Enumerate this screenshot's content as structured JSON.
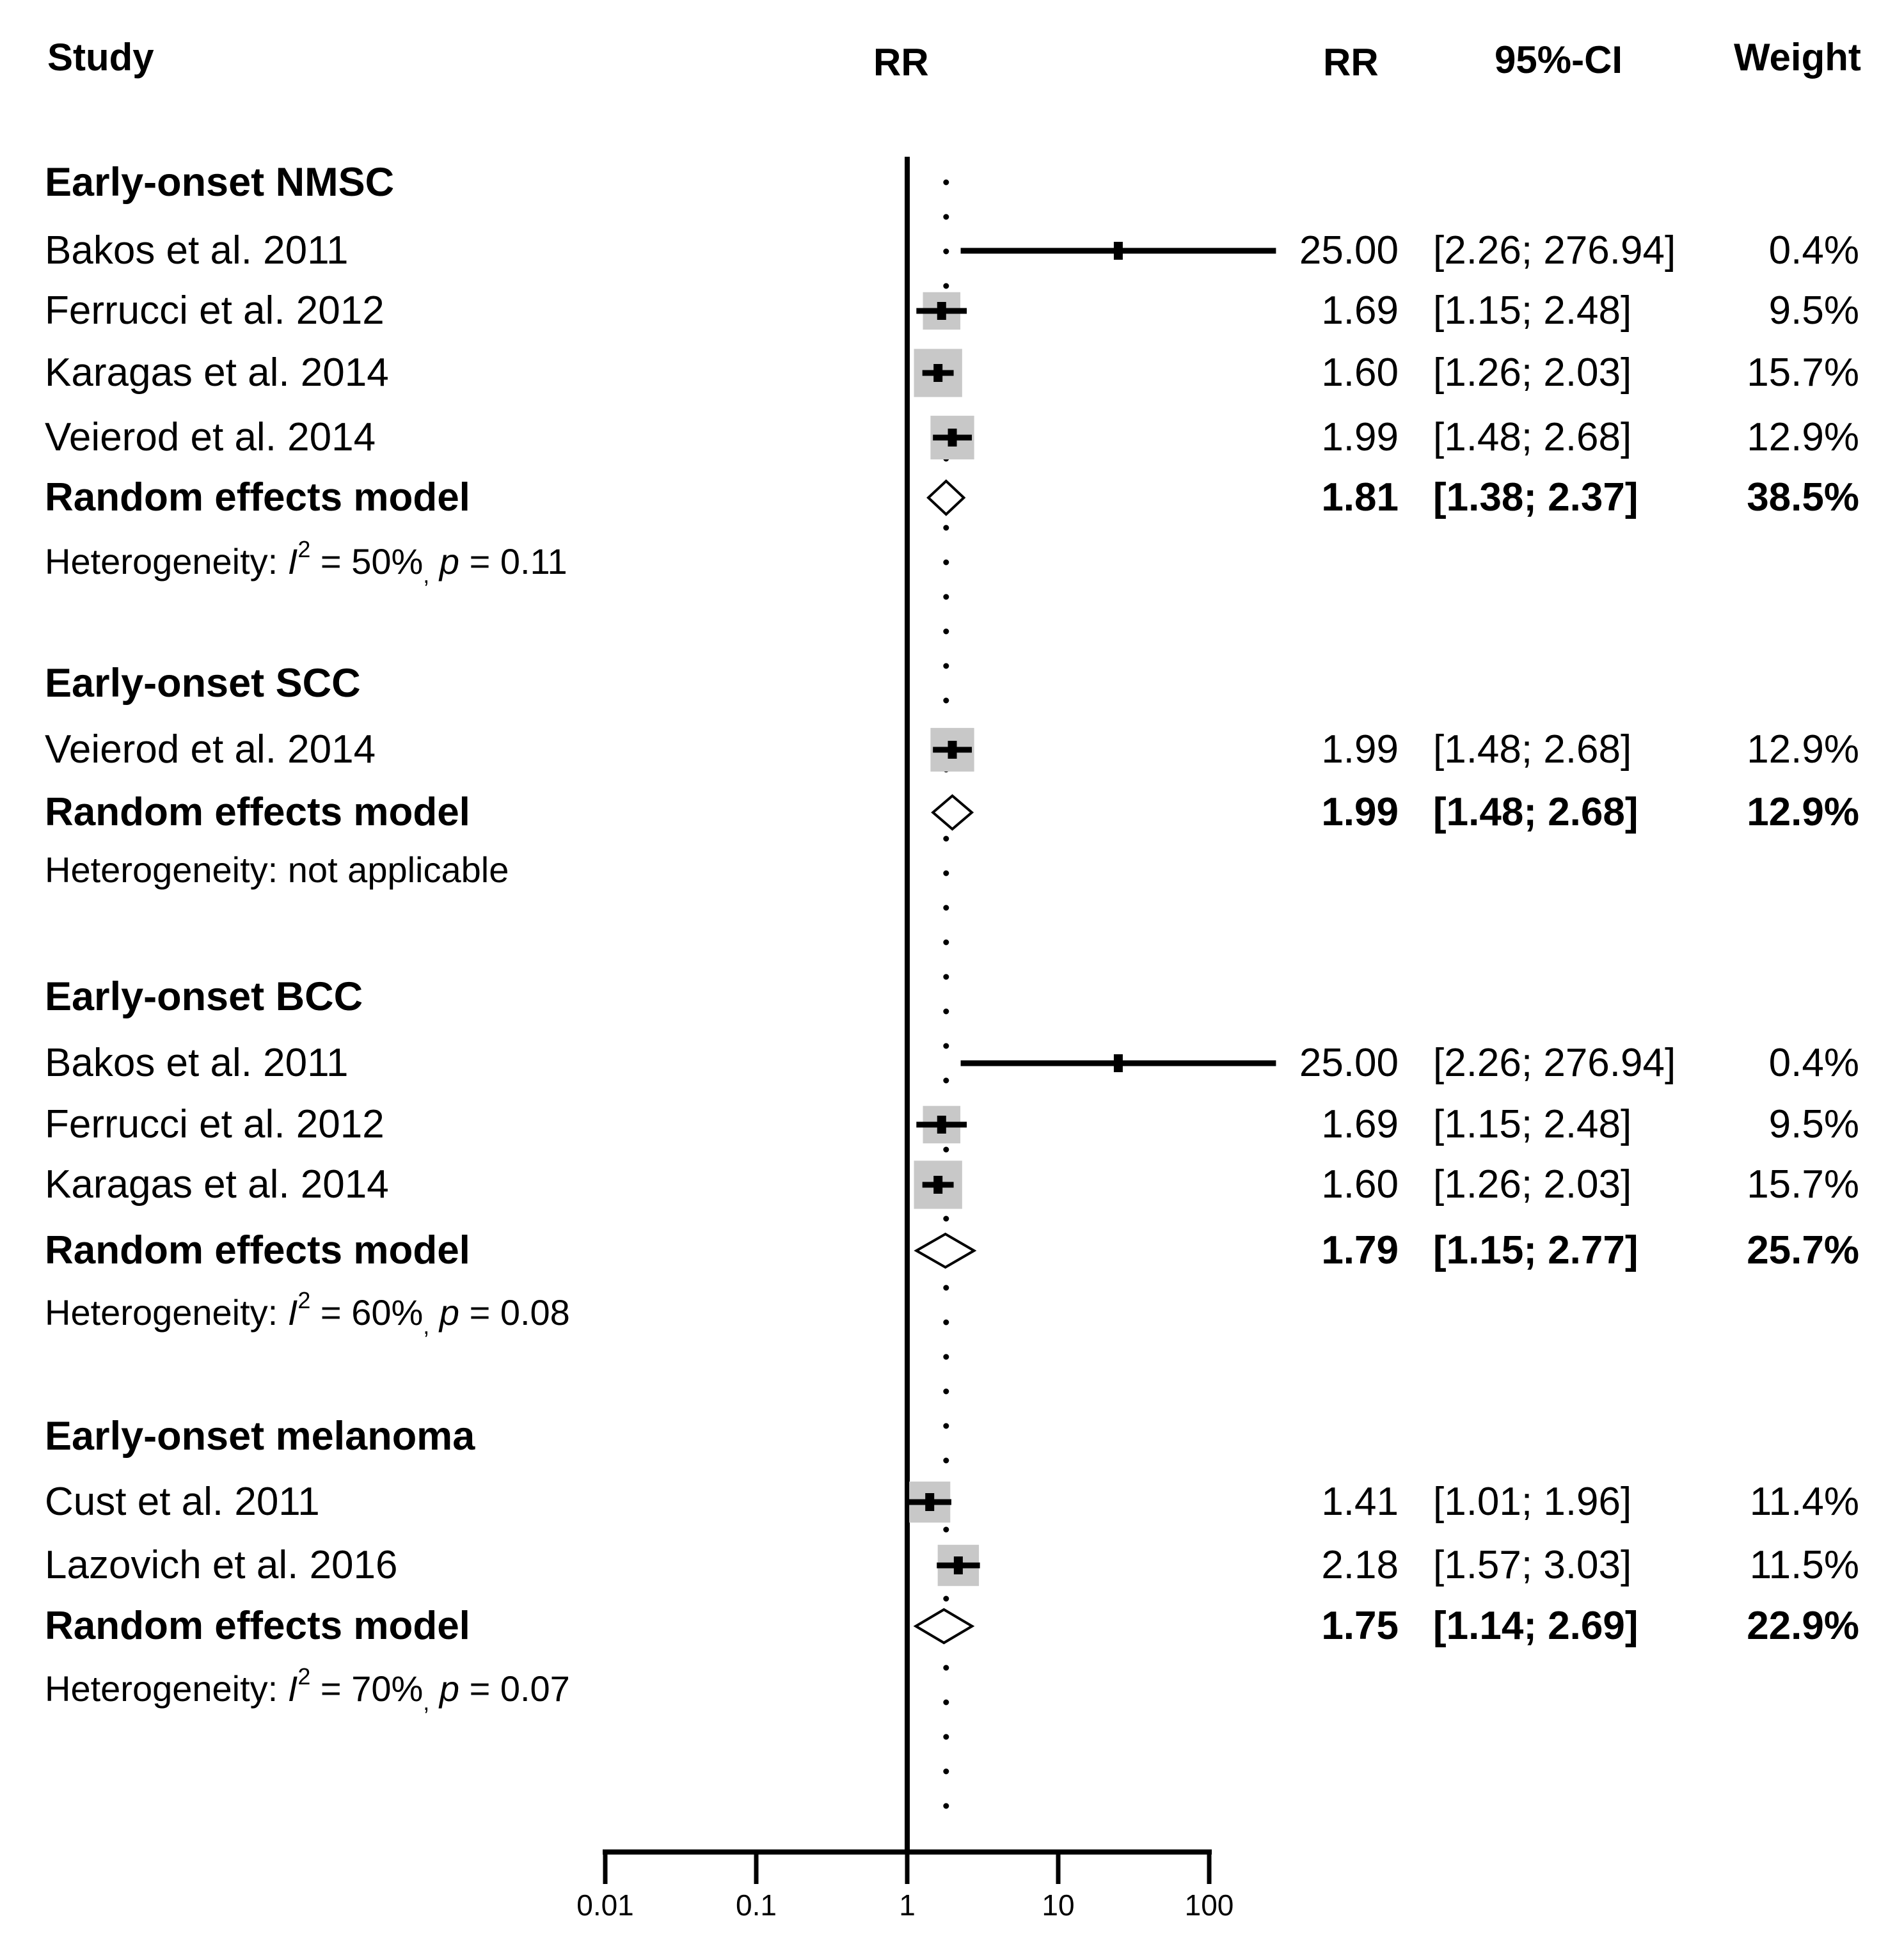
{
  "headers": {
    "study": "Study",
    "rr_plot": "RR",
    "rr": "RR",
    "ci": "95%-CI",
    "weight": "Weight"
  },
  "rows": [
    {
      "kind": "group",
      "label": "Early-onset NMSC"
    },
    {
      "kind": "study",
      "label": "Bakos et al. 2011",
      "rr": "25.00",
      "ci": "[2.26; 276.94]",
      "weight": "0.4%"
    },
    {
      "kind": "study",
      "label": "Ferrucci et al. 2012",
      "rr": "1.69",
      "ci": "[1.15;   2.48]",
      "weight": "9.5%"
    },
    {
      "kind": "study",
      "label": "Karagas et al. 2014",
      "rr": "1.60",
      "ci": "[1.26;   2.03]",
      "weight": "15.7%"
    },
    {
      "kind": "study",
      "label": "Veierod et al. 2014",
      "rr": "1.99",
      "ci": "[1.48;   2.68]",
      "weight": "12.9%"
    },
    {
      "kind": "summary",
      "label": "Random effects model",
      "rr": "1.81",
      "ci": "[1.38;   2.37]",
      "weight": "38.5%"
    },
    {
      "kind": "het",
      "prefix": "Heterogeneity: ",
      "i_letter": "I",
      "i_sup": "2",
      "i_text": " = 50%",
      "sub": ",",
      "p_letter": "p",
      "p_text": " = 0.11"
    },
    {
      "kind": "group",
      "label": "Early-onset SCC"
    },
    {
      "kind": "study",
      "label": "Veierod et al. 2014",
      "rr": "1.99",
      "ci": "[1.48;   2.68]",
      "weight": "12.9%"
    },
    {
      "kind": "summary",
      "label": "Random effects model",
      "rr": "1.99",
      "ci": "[1.48;   2.68]",
      "weight": "12.9%"
    },
    {
      "kind": "het",
      "prefix": "Heterogeneity: not applicable"
    },
    {
      "kind": "group",
      "label": "Early-onset BCC"
    },
    {
      "kind": "study",
      "label": "Bakos et al. 2011",
      "rr": "25.00",
      "ci": "[2.26; 276.94]",
      "weight": "0.4%"
    },
    {
      "kind": "study",
      "label": "Ferrucci et al. 2012",
      "rr": "1.69",
      "ci": "[1.15;   2.48]",
      "weight": "9.5%"
    },
    {
      "kind": "study",
      "label": "Karagas et al. 2014",
      "rr": "1.60",
      "ci": "[1.26;   2.03]",
      "weight": "15.7%"
    },
    {
      "kind": "summary",
      "label": "Random effects model",
      "rr": "1.79",
      "ci": "[1.15;   2.77]",
      "weight": "25.7%"
    },
    {
      "kind": "het",
      "prefix": "Heterogeneity: ",
      "i_letter": "I",
      "i_sup": "2",
      "i_text": " = 60%",
      "sub": ",",
      "p_letter": "p",
      "p_text": " = 0.08"
    },
    {
      "kind": "group",
      "label": "Early-onset melanoma"
    },
    {
      "kind": "study",
      "label": "Cust et al. 2011",
      "rr": "1.41",
      "ci": "[1.01;   1.96]",
      "weight": "11.4%"
    },
    {
      "kind": "study",
      "label": "Lazovich et al. 2016",
      "rr": "2.18",
      "ci": "[1.57;   3.03]",
      "weight": "11.5%"
    },
    {
      "kind": "summary",
      "label": "Random effects model",
      "rr": "1.75",
      "ci": "[1.14;   2.69]",
      "weight": "22.9%"
    },
    {
      "kind": "het",
      "prefix": "Heterogeneity: ",
      "i_letter": "I",
      "i_sup": "2",
      "i_text": " = 70%",
      "sub": ",",
      "p_letter": "p",
      "p_text": " = 0.07"
    }
  ],
  "colors": {
    "line": "#000000",
    "box": "#c8c8c8",
    "diamond_fill": "#ffffff"
  },
  "chart_data": {
    "type": "forest",
    "xscale": "log",
    "xlim": [
      0.01,
      100
    ],
    "xticks": [
      0.01,
      0.1,
      1,
      10,
      100
    ],
    "xtick_labels": [
      "0.01",
      "0.1",
      "1",
      "10",
      "100"
    ],
    "null_line": 1,
    "overall_line": 1.81,
    "studies": [
      {
        "group": "Early-onset NMSC",
        "label": "Bakos et al. 2011",
        "est": 25.0,
        "lo": 2.26,
        "hi": 276.94,
        "weight": 0.4
      },
      {
        "group": "Early-onset NMSC",
        "label": "Ferrucci et al. 2012",
        "est": 1.69,
        "lo": 1.15,
        "hi": 2.48,
        "weight": 9.5
      },
      {
        "group": "Early-onset NMSC",
        "label": "Karagas et al. 2014",
        "est": 1.6,
        "lo": 1.26,
        "hi": 2.03,
        "weight": 15.7
      },
      {
        "group": "Early-onset NMSC",
        "label": "Veierod et al. 2014",
        "est": 1.99,
        "lo": 1.48,
        "hi": 2.68,
        "weight": 12.9
      },
      {
        "group": "Early-onset SCC",
        "label": "Veierod et al. 2014",
        "est": 1.99,
        "lo": 1.48,
        "hi": 2.68,
        "weight": 12.9
      },
      {
        "group": "Early-onset BCC",
        "label": "Bakos et al. 2011",
        "est": 25.0,
        "lo": 2.26,
        "hi": 276.94,
        "weight": 0.4
      },
      {
        "group": "Early-onset BCC",
        "label": "Ferrucci et al. 2012",
        "est": 1.69,
        "lo": 1.15,
        "hi": 2.48,
        "weight": 9.5
      },
      {
        "group": "Early-onset BCC",
        "label": "Karagas et al. 2014",
        "est": 1.6,
        "lo": 1.26,
        "hi": 2.03,
        "weight": 15.7
      },
      {
        "group": "Early-onset melanoma",
        "label": "Cust et al. 2011",
        "est": 1.41,
        "lo": 1.01,
        "hi": 1.96,
        "weight": 11.4
      },
      {
        "group": "Early-onset melanoma",
        "label": "Lazovich et al. 2016",
        "est": 2.18,
        "lo": 1.57,
        "hi": 3.03,
        "weight": 11.5
      }
    ],
    "summaries": [
      {
        "group": "Early-onset NMSC",
        "label": "Random effects model",
        "est": 1.81,
        "lo": 1.38,
        "hi": 2.37,
        "weight": 38.5
      },
      {
        "group": "Early-onset SCC",
        "label": "Random effects model",
        "est": 1.99,
        "lo": 1.48,
        "hi": 2.68,
        "weight": 12.9
      },
      {
        "group": "Early-onset BCC",
        "label": "Random effects model",
        "est": 1.79,
        "lo": 1.15,
        "hi": 2.77,
        "weight": 25.7
      },
      {
        "group": "Early-onset melanoma",
        "label": "Random effects model",
        "est": 1.75,
        "lo": 1.14,
        "hi": 2.69,
        "weight": 22.9
      }
    ]
  }
}
